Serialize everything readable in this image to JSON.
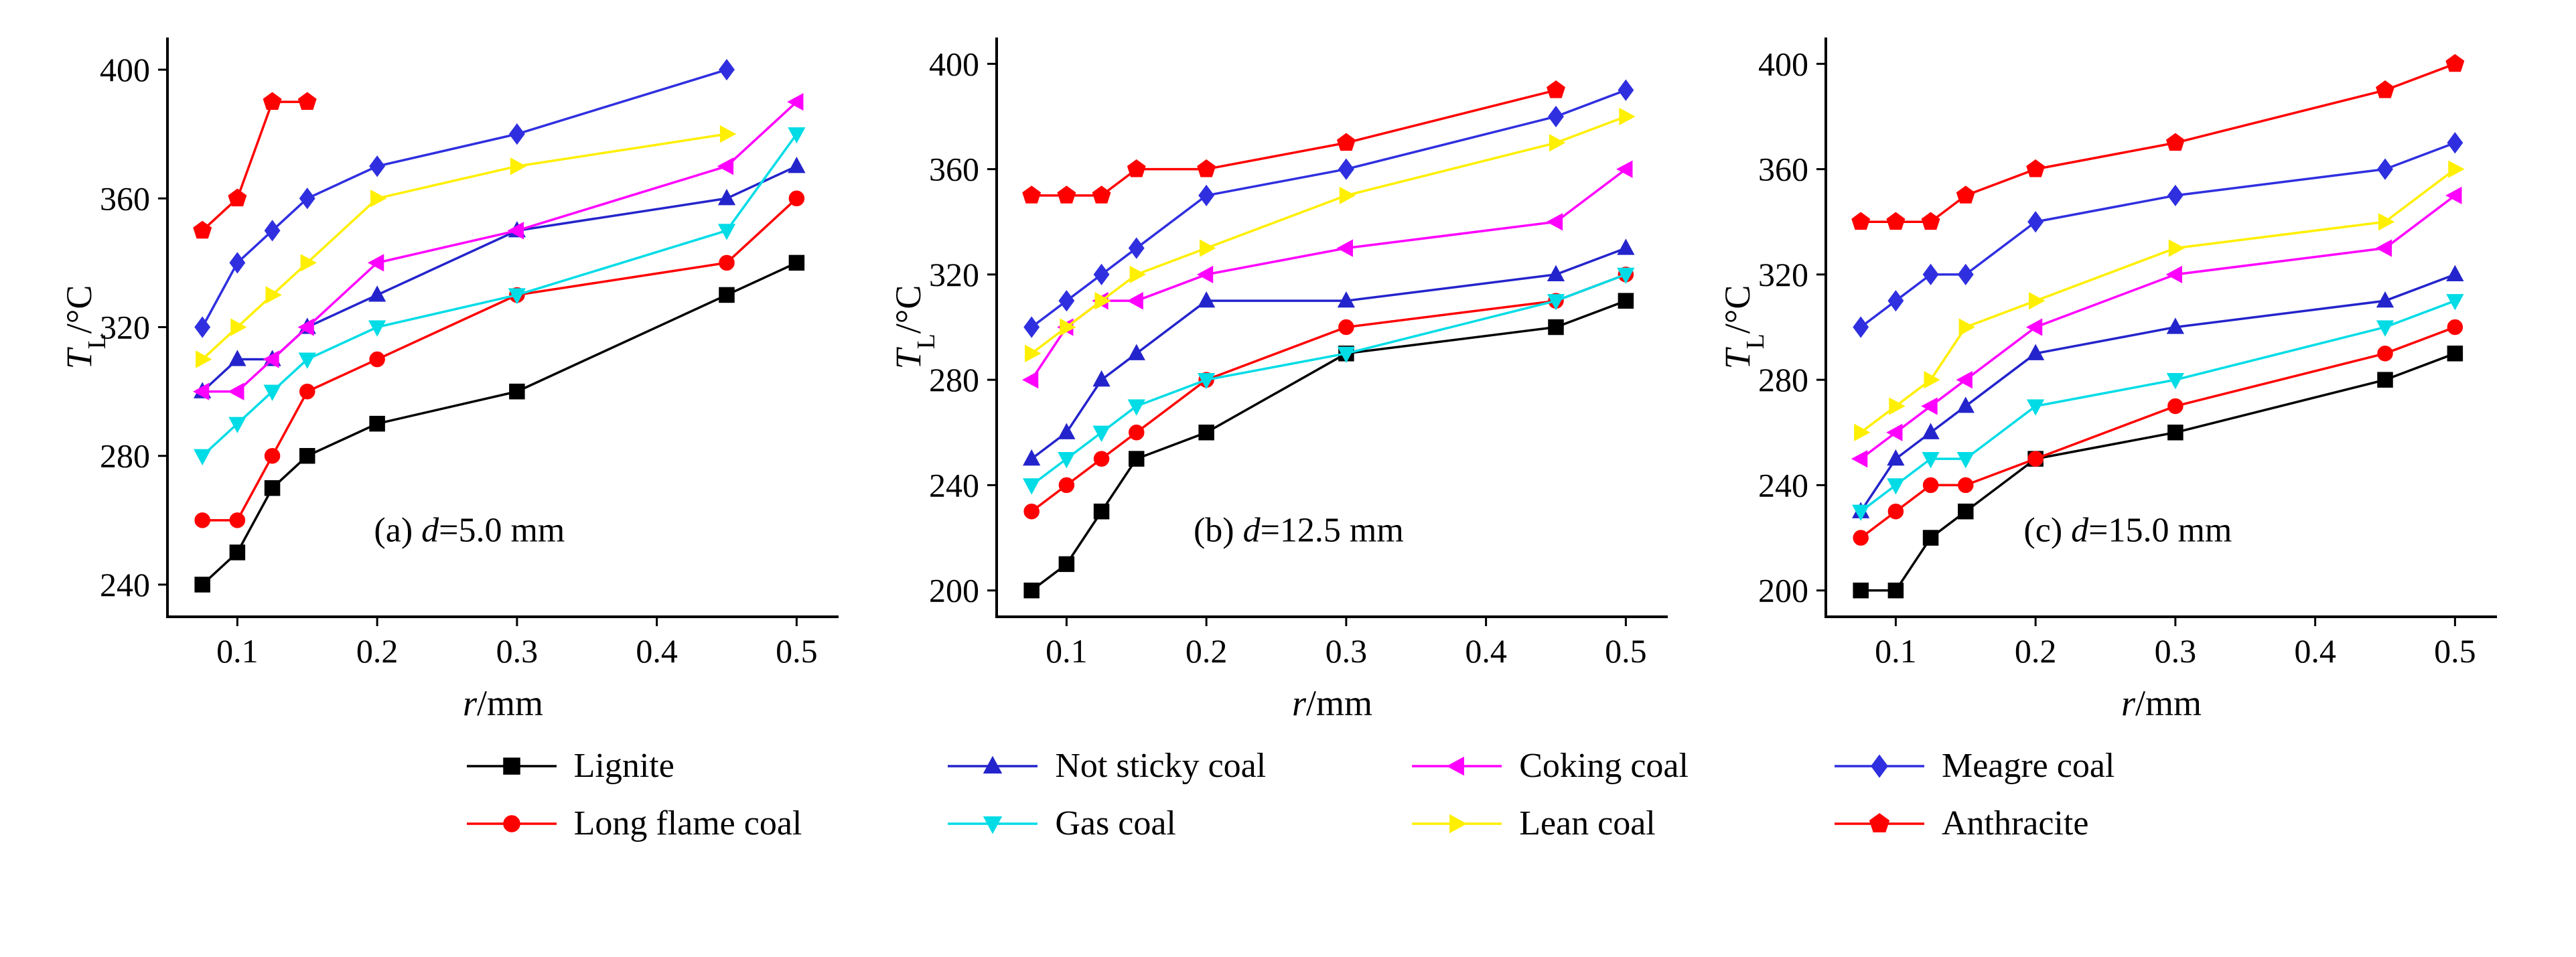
{
  "figure": {
    "xlabel": {
      "it": "r",
      "post": "/mm"
    },
    "ylabel": {
      "it": "T",
      "sub": "L",
      "post": "/°C"
    }
  },
  "legend": {
    "items": [
      {
        "label": "Lignite",
        "marker": "square",
        "color": "#000000"
      },
      {
        "label": "Not sticky coal",
        "marker": "triangle-up",
        "color": "#2424cc"
      },
      {
        "label": "Coking coal",
        "marker": "triangle-left",
        "color": "#ff00ff"
      },
      {
        "label": "Meagre coal",
        "marker": "diamond",
        "color": "#2f2fe0"
      },
      {
        "label": "Long flame coal",
        "marker": "circle",
        "color": "#ff0000"
      },
      {
        "label": "Gas coal",
        "marker": "triangle-down",
        "color": "#00dce6"
      },
      {
        "label": "Lean coal",
        "marker": "triangle-right",
        "color": "#ffef00"
      },
      {
        "label": "Anthracite",
        "marker": "pentagon",
        "color": "#ff0000"
      }
    ]
  },
  "chart_data": [
    {
      "type": "line",
      "panel_label": {
        "pre": "(a) ",
        "it": "d",
        "post": "=5.0 mm"
      },
      "xlabel": {
        "it": "r",
        "post": "/mm"
      },
      "ylabel": {
        "it": "T",
        "sub": "L",
        "post": "/°C"
      },
      "xlim": [
        0.05,
        0.53
      ],
      "ylim": [
        230,
        410
      ],
      "xticks": [
        0.1,
        0.2,
        0.3,
        0.4,
        0.5
      ],
      "yticks": [
        240,
        280,
        320,
        360,
        400
      ],
      "x": [
        0.075,
        0.1,
        0.125,
        0.15,
        0.2,
        0.3,
        0.45,
        0.5
      ],
      "series": [
        {
          "name": "Lignite",
          "color": "#000000",
          "marker": "square",
          "values": [
            240,
            250,
            270,
            280,
            290,
            300,
            330,
            340
          ]
        },
        {
          "name": "Long flame coal",
          "color": "#ff0000",
          "marker": "circle",
          "values": [
            260,
            260,
            280,
            300,
            310,
            330,
            340,
            360
          ]
        },
        {
          "name": "Not sticky coal",
          "color": "#2424cc",
          "marker": "triangle-up",
          "values": [
            300,
            310,
            310,
            320,
            330,
            350,
            360,
            370
          ]
        },
        {
          "name": "Gas coal",
          "color": "#00dce6",
          "marker": "triangle-down",
          "values": [
            280,
            290,
            300,
            310,
            320,
            330,
            350,
            380
          ]
        },
        {
          "name": "Coking coal",
          "color": "#ff00ff",
          "marker": "triangle-left",
          "values": [
            300,
            300,
            310,
            320,
            340,
            350,
            370,
            390
          ]
        },
        {
          "name": "Lean coal",
          "color": "#ffef00",
          "marker": "triangle-right",
          "values": [
            310,
            320,
            330,
            340,
            360,
            370,
            380,
            null
          ]
        },
        {
          "name": "Meagre coal",
          "color": "#2f2fe0",
          "marker": "diamond",
          "values": [
            320,
            340,
            350,
            360,
            370,
            380,
            400,
            null
          ]
        },
        {
          "name": "Anthracite",
          "color": "#ff0000",
          "marker": "pentagon",
          "values": [
            350,
            360,
            390,
            390,
            null,
            null,
            null,
            null
          ]
        }
      ]
    },
    {
      "type": "line",
      "panel_label": {
        "pre": "(b) ",
        "it": "d",
        "post": "=12.5 mm"
      },
      "xlabel": {
        "it": "r",
        "post": "/mm"
      },
      "ylabel": {
        "it": "T",
        "sub": "L",
        "post": "/°C"
      },
      "xlim": [
        0.05,
        0.53
      ],
      "ylim": [
        190,
        410
      ],
      "xticks": [
        0.1,
        0.2,
        0.3,
        0.4,
        0.5
      ],
      "yticks": [
        200,
        240,
        280,
        320,
        360,
        400
      ],
      "x": [
        0.075,
        0.1,
        0.125,
        0.15,
        0.2,
        0.3,
        0.45,
        0.5
      ],
      "series": [
        {
          "name": "Lignite",
          "color": "#000000",
          "marker": "square",
          "values": [
            200,
            210,
            230,
            250,
            260,
            290,
            300,
            310
          ]
        },
        {
          "name": "Long flame coal",
          "color": "#ff0000",
          "marker": "circle",
          "values": [
            230,
            240,
            250,
            260,
            280,
            300,
            310,
            320
          ]
        },
        {
          "name": "Not sticky coal",
          "color": "#2424cc",
          "marker": "triangle-up",
          "values": [
            250,
            260,
            280,
            290,
            310,
            310,
            320,
            330
          ]
        },
        {
          "name": "Gas coal",
          "color": "#00dce6",
          "marker": "triangle-down",
          "values": [
            240,
            250,
            260,
            270,
            280,
            290,
            310,
            320
          ]
        },
        {
          "name": "Coking coal",
          "color": "#ff00ff",
          "marker": "triangle-left",
          "values": [
            280,
            300,
            310,
            310,
            320,
            330,
            340,
            360
          ]
        },
        {
          "name": "Lean coal",
          "color": "#ffef00",
          "marker": "triangle-right",
          "values": [
            290,
            300,
            310,
            320,
            330,
            350,
            370,
            380
          ]
        },
        {
          "name": "Meagre coal",
          "color": "#2f2fe0",
          "marker": "diamond",
          "values": [
            300,
            310,
            320,
            330,
            350,
            360,
            380,
            390
          ]
        },
        {
          "name": "Anthracite",
          "color": "#ff0000",
          "marker": "pentagon",
          "values": [
            350,
            350,
            350,
            360,
            360,
            370,
            390,
            null
          ]
        }
      ]
    },
    {
      "type": "line",
      "panel_label": {
        "pre": "(c) ",
        "it": "d",
        "post": "=15.0 mm"
      },
      "xlabel": {
        "it": "r",
        "post": "/mm"
      },
      "ylabel": {
        "it": "T",
        "sub": "L",
        "post": "/°C"
      },
      "xlim": [
        0.05,
        0.53
      ],
      "ylim": [
        190,
        410
      ],
      "xticks": [
        0.1,
        0.2,
        0.3,
        0.4,
        0.5
      ],
      "yticks": [
        200,
        240,
        280,
        320,
        360,
        400
      ],
      "x": [
        0.075,
        0.1,
        0.125,
        0.15,
        0.2,
        0.3,
        0.45,
        0.5
      ],
      "series": [
        {
          "name": "Lignite",
          "color": "#000000",
          "marker": "square",
          "values": [
            200,
            200,
            220,
            230,
            250,
            260,
            280,
            290
          ]
        },
        {
          "name": "Long flame coal",
          "color": "#ff0000",
          "marker": "circle",
          "values": [
            220,
            230,
            240,
            240,
            250,
            270,
            290,
            300
          ]
        },
        {
          "name": "Not sticky coal",
          "color": "#2424cc",
          "marker": "triangle-up",
          "values": [
            230,
            250,
            260,
            270,
            290,
            300,
            310,
            320
          ]
        },
        {
          "name": "Gas coal",
          "color": "#00dce6",
          "marker": "triangle-down",
          "values": [
            230,
            240,
            250,
            250,
            270,
            280,
            300,
            310
          ]
        },
        {
          "name": "Coking coal",
          "color": "#ff00ff",
          "marker": "triangle-left",
          "values": [
            250,
            260,
            270,
            280,
            300,
            320,
            330,
            350
          ]
        },
        {
          "name": "Lean coal",
          "color": "#ffef00",
          "marker": "triangle-right",
          "values": [
            260,
            270,
            280,
            300,
            310,
            330,
            340,
            360
          ]
        },
        {
          "name": "Meagre coal",
          "color": "#2f2fe0",
          "marker": "diamond",
          "values": [
            300,
            310,
            320,
            320,
            340,
            350,
            360,
            370
          ]
        },
        {
          "name": "Anthracite",
          "color": "#ff0000",
          "marker": "pentagon",
          "values": [
            340,
            340,
            340,
            350,
            360,
            370,
            390,
            400
          ]
        }
      ]
    }
  ]
}
